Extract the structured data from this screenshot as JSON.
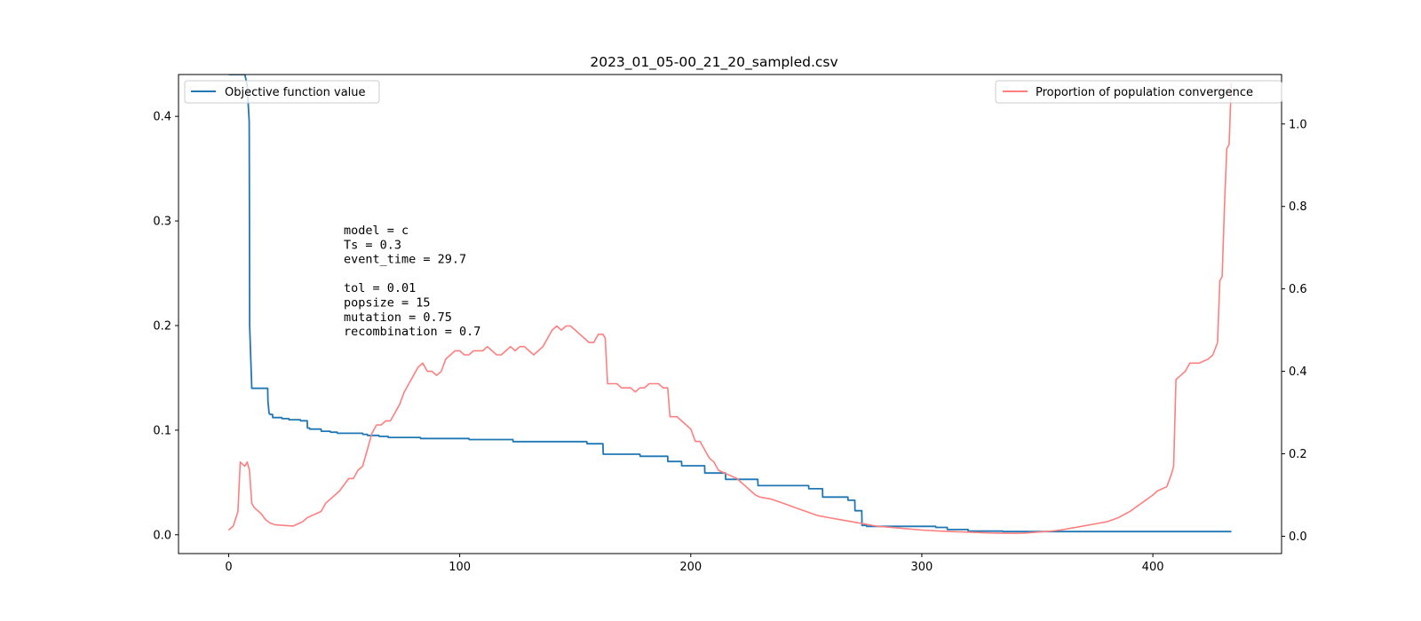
{
  "chart_data": {
    "type": "line",
    "title": "2023_01_05-00_21_20_sampled.csv",
    "xlabel": "",
    "ylabel": "",
    "xlim": [
      -21.7,
      455.7
    ],
    "ylim_left": [
      -0.018,
      0.44
    ],
    "ylim_right": [
      -0.042,
      1.12
    ],
    "x_ticks": [
      0,
      100,
      200,
      300,
      400
    ],
    "y_ticks_left": [
      0.0,
      0.1,
      0.2,
      0.3,
      0.4
    ],
    "y_ticks_right": [
      0.0,
      0.2,
      0.4,
      0.6,
      0.8,
      1.0
    ],
    "grid": false,
    "series": [
      {
        "name": "Objective function value",
        "axis": "left",
        "color": "#1f77b4",
        "legend_loc": "upper left",
        "x": [
          0,
          1,
          2,
          3,
          4,
          5,
          6,
          7,
          8,
          8.9,
          9.0,
          9.1,
          10.0,
          10.1,
          16,
          16.9,
          17,
          17.5,
          18,
          19,
          19.1,
          23,
          23.1,
          26,
          26.1,
          31,
          31.1,
          34,
          34.1,
          35,
          35.1,
          40,
          40.1,
          44,
          44.1,
          47,
          47.1,
          58,
          58.1,
          60,
          60.1,
          65,
          65.1,
          69,
          69.1,
          83,
          83.1,
          104,
          104.1,
          123,
          123.1,
          155,
          155.1,
          162,
          162.1,
          178,
          178.1,
          190,
          190.1,
          196,
          196.1,
          206,
          206.1,
          215,
          215.1,
          229,
          229.1,
          251,
          251.1,
          257,
          257.1,
          268,
          268.1,
          271,
          271.1,
          274,
          274.1,
          276,
          276.1,
          306,
          306.1,
          311,
          311.1,
          320,
          320.1,
          335,
          335.1,
          380,
          400,
          434
        ],
        "values": [
          0.44,
          0.44,
          0.44,
          0.44,
          0.44,
          0.44,
          0.44,
          0.44,
          0.43,
          0.395,
          0.3,
          0.2,
          0.14,
          0.14,
          0.14,
          0.14,
          0.128,
          0.116,
          0.115,
          0.115,
          0.112,
          0.112,
          0.111,
          0.111,
          0.11,
          0.11,
          0.109,
          0.109,
          0.102,
          0.102,
          0.101,
          0.101,
          0.099,
          0.099,
          0.098,
          0.098,
          0.097,
          0.097,
          0.096,
          0.096,
          0.095,
          0.095,
          0.094,
          0.094,
          0.093,
          0.093,
          0.092,
          0.092,
          0.091,
          0.091,
          0.089,
          0.089,
          0.087,
          0.087,
          0.077,
          0.077,
          0.075,
          0.075,
          0.07,
          0.07,
          0.066,
          0.066,
          0.059,
          0.059,
          0.053,
          0.053,
          0.047,
          0.047,
          0.044,
          0.044,
          0.036,
          0.036,
          0.033,
          0.033,
          0.023,
          0.023,
          0.009,
          0.009,
          0.008,
          0.008,
          0.007,
          0.007,
          0.005,
          0.005,
          0.0035,
          0.0035,
          0.003,
          0.003,
          0.003,
          0.003
        ]
      },
      {
        "name": "Proportion of population convergence",
        "axis": "right",
        "color": "#ff7f7f",
        "legend_loc": "upper right",
        "x": [
          0,
          2,
          4,
          5,
          6,
          7,
          8,
          9,
          10,
          11,
          12,
          14,
          16,
          18,
          20,
          22,
          25,
          28,
          30,
          32,
          34,
          36,
          38,
          40,
          42,
          44,
          46,
          48,
          50,
          52,
          54,
          56,
          58,
          60,
          62,
          64,
          66,
          68,
          70,
          72,
          74,
          76,
          78,
          80,
          82,
          84,
          86,
          88,
          90,
          92,
          94,
          96,
          98,
          100,
          102,
          104,
          106,
          108,
          110,
          112,
          114,
          116,
          118,
          120,
          122,
          124,
          126,
          128,
          130,
          132,
          134,
          136,
          138,
          140,
          142,
          144,
          146,
          148,
          150,
          152,
          154,
          156,
          158,
          160,
          162,
          163,
          164,
          166,
          168,
          170,
          172,
          174,
          176,
          178,
          180,
          182,
          184,
          186,
          188,
          190,
          191,
          192,
          194,
          196,
          198,
          200,
          202,
          204,
          206,
          208,
          210,
          212,
          214,
          216,
          218,
          220,
          222,
          224,
          226,
          228,
          230,
          235,
          240,
          245,
          250,
          255,
          260,
          265,
          270,
          275,
          280,
          290,
          300,
          310,
          320,
          330,
          340,
          345,
          350,
          355,
          360,
          365,
          370,
          375,
          380,
          385,
          390,
          395,
          400,
          402,
          404,
          406,
          408,
          409,
          410,
          412,
          414,
          416,
          418,
          420,
          422,
          424,
          426,
          428,
          429,
          430,
          431,
          432,
          433,
          434
        ],
        "values": [
          0.015,
          0.025,
          0.06,
          0.18,
          0.175,
          0.17,
          0.18,
          0.16,
          0.08,
          0.07,
          0.065,
          0.055,
          0.04,
          0.032,
          0.028,
          0.027,
          0.026,
          0.025,
          0.03,
          0.035,
          0.045,
          0.05,
          0.055,
          0.06,
          0.08,
          0.09,
          0.1,
          0.11,
          0.125,
          0.14,
          0.14,
          0.16,
          0.17,
          0.21,
          0.25,
          0.27,
          0.27,
          0.28,
          0.28,
          0.3,
          0.32,
          0.35,
          0.37,
          0.39,
          0.41,
          0.42,
          0.4,
          0.4,
          0.39,
          0.4,
          0.43,
          0.44,
          0.45,
          0.45,
          0.44,
          0.44,
          0.45,
          0.45,
          0.45,
          0.46,
          0.45,
          0.44,
          0.44,
          0.45,
          0.46,
          0.45,
          0.46,
          0.46,
          0.45,
          0.44,
          0.45,
          0.46,
          0.48,
          0.5,
          0.51,
          0.5,
          0.51,
          0.51,
          0.5,
          0.49,
          0.48,
          0.47,
          0.47,
          0.49,
          0.49,
          0.48,
          0.37,
          0.37,
          0.37,
          0.36,
          0.36,
          0.36,
          0.35,
          0.36,
          0.36,
          0.37,
          0.37,
          0.37,
          0.36,
          0.36,
          0.29,
          0.29,
          0.29,
          0.28,
          0.27,
          0.26,
          0.23,
          0.23,
          0.21,
          0.19,
          0.18,
          0.16,
          0.155,
          0.15,
          0.145,
          0.14,
          0.13,
          0.12,
          0.11,
          0.1,
          0.095,
          0.09,
          0.08,
          0.07,
          0.06,
          0.05,
          0.045,
          0.04,
          0.035,
          0.03,
          0.025,
          0.02,
          0.015,
          0.012,
          0.01,
          0.008,
          0.007,
          0.008,
          0.01,
          0.012,
          0.015,
          0.02,
          0.025,
          0.03,
          0.035,
          0.045,
          0.06,
          0.08,
          0.1,
          0.11,
          0.115,
          0.12,
          0.15,
          0.17,
          0.38,
          0.39,
          0.4,
          0.42,
          0.42,
          0.42,
          0.425,
          0.43,
          0.44,
          0.47,
          0.62,
          0.63,
          0.8,
          0.94,
          0.95,
          1.1
        ]
      }
    ],
    "annotation_lines": [
      "model = c",
      "Ts = 0.3",
      "event_time = 29.7",
      "",
      "tol = 0.01",
      "popsize = 15",
      "mutation = 0.75",
      "recombination = 0.7"
    ]
  }
}
